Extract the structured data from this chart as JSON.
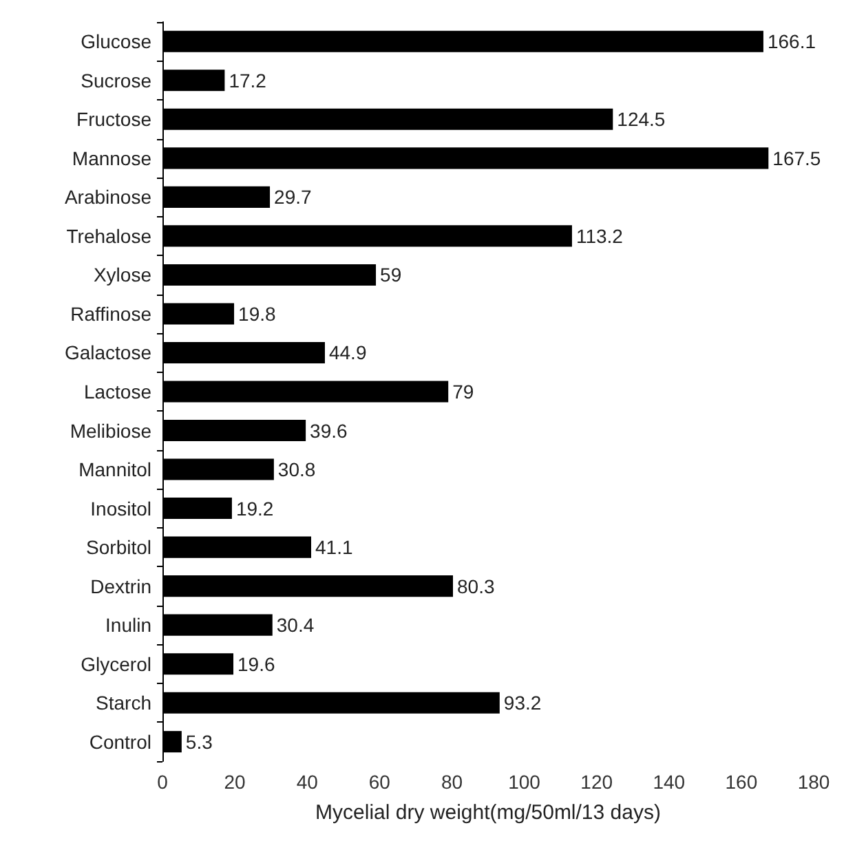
{
  "chart_data": {
    "type": "bar",
    "orientation": "horizontal",
    "xlabel": "Mycelial dry weight(mg/50ml/13 days)",
    "categories": [
      "Glucose",
      "Sucrose",
      "Fructose",
      "Mannose",
      "Arabinose",
      "Trehalose",
      "Xylose",
      "Raffinose",
      "Galactose",
      "Lactose",
      "Melibiose",
      "Mannitol",
      "Inositol",
      "Sorbitol",
      "Dextrin",
      "Inulin",
      "Glycerol",
      "Starch",
      "Control"
    ],
    "values": [
      166.1,
      17.2,
      124.5,
      167.5,
      29.7,
      113.2,
      59,
      19.8,
      44.9,
      79,
      39.6,
      30.8,
      19.2,
      41.1,
      80.3,
      30.4,
      19.6,
      93.2,
      5.3
    ],
    "color": "#000000",
    "xlim": [
      0,
      180
    ],
    "xticks": [
      0,
      20,
      40,
      60,
      80,
      100,
      120,
      140,
      160,
      180
    ],
    "data_labels": true
  }
}
